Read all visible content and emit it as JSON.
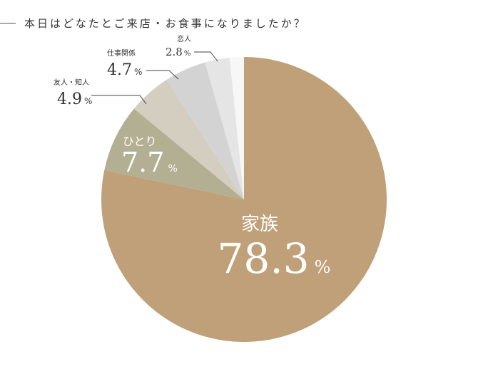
{
  "chart_data": {
    "type": "pie",
    "title": "本日はどなたとご来店・お食事になりましたか？",
    "unit": "%",
    "start": "top",
    "direction": "clockwise",
    "slices": [
      {
        "label": "家族",
        "value": 78.3,
        "value_text": "78.3",
        "color": "#BFA078"
      },
      {
        "label": "ひとり",
        "value": 7.7,
        "value_text": "7.7",
        "color": "#B3AF93"
      },
      {
        "label": "友人・知人",
        "value": 4.9,
        "value_text": "4.9",
        "color": "#D3CEC0"
      },
      {
        "label": "仕事関係",
        "value": 4.7,
        "value_text": "4.7",
        "color": "#D3D3D3"
      },
      {
        "label": "恋人",
        "value": 2.8,
        "value_text": "2.8",
        "color": "#E5E5E5"
      },
      {
        "label": "",
        "value": 1.6,
        "value_text": "",
        "color": "#F7F7F7"
      }
    ]
  }
}
